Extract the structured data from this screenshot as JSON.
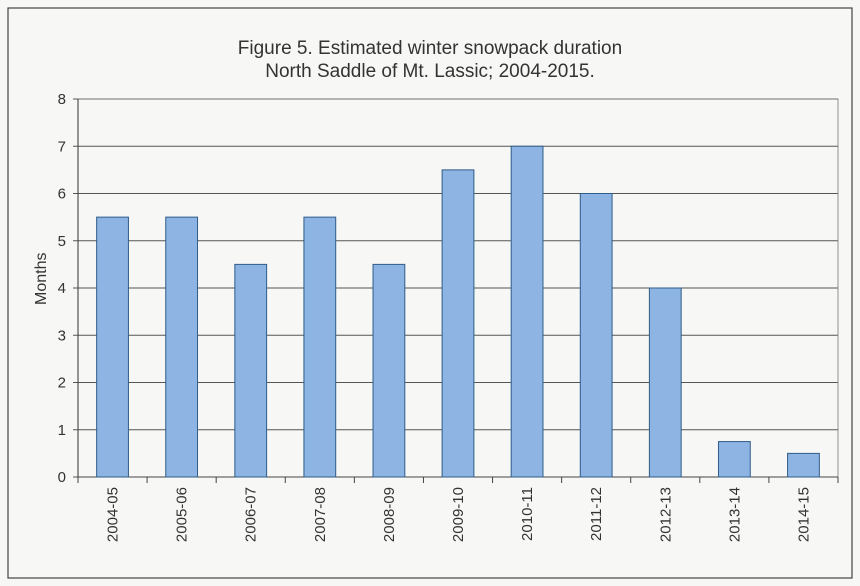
{
  "chart_data": {
    "type": "bar",
    "title": "Figure 5.  Estimated winter snowpack duration",
    "subtitle": "North Saddle of Mt. Lassic; 2004-2015.",
    "xlabel": "",
    "ylabel": "Months",
    "categories": [
      "2004-05",
      "2005-06",
      "2006-07",
      "2007-08",
      "2008-09",
      "2009-10",
      "2010-11",
      "2011-12",
      "2012-13",
      "2013-14",
      "2014-15"
    ],
    "values": [
      5.5,
      5.5,
      4.5,
      5.5,
      4.5,
      6.5,
      7.0,
      6.0,
      4.0,
      0.75,
      0.5
    ],
    "ylim": [
      0,
      8
    ],
    "yticks": [
      "0",
      "1",
      "2",
      "3",
      "4",
      "5",
      "6",
      "7",
      "8"
    ],
    "grid": true,
    "legend": "none",
    "bar_color": "#8db4e2",
    "bar_edge_color": "#2e5d8a"
  }
}
